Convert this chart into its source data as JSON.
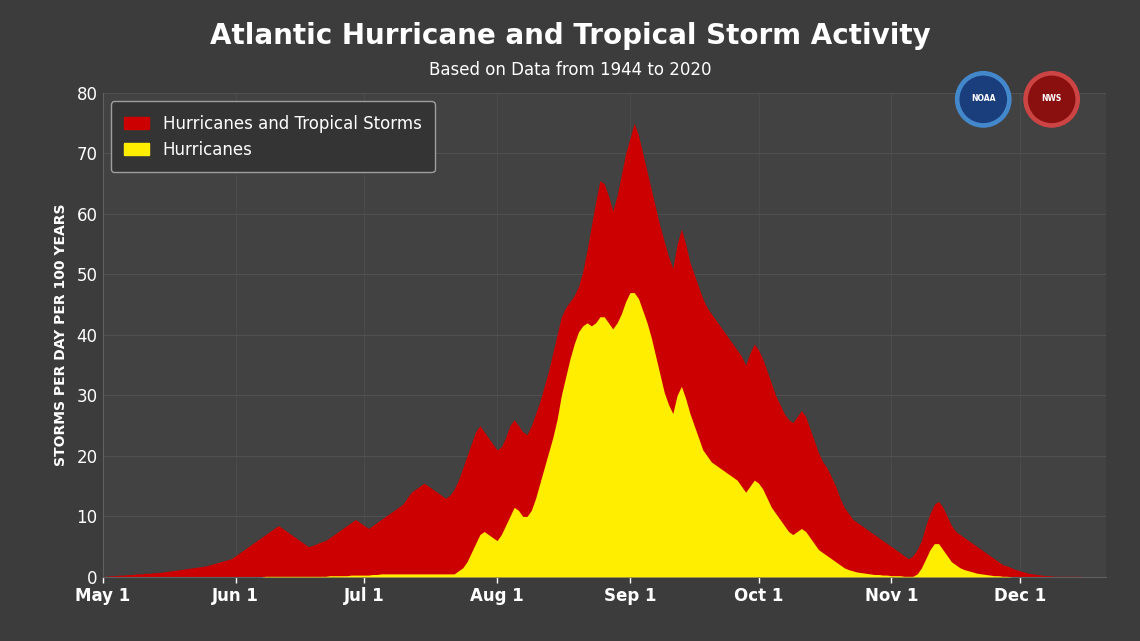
{
  "title": "Atlantic Hurricane and Tropical Storm Activity",
  "subtitle": "Based on Data from 1944 to 2020",
  "ylabel": "STORMS PER DAY PER 100 YEARS",
  "ylim": [
    0,
    80
  ],
  "yticks": [
    0,
    10,
    20,
    30,
    40,
    50,
    60,
    70,
    80
  ],
  "xtick_labels": [
    "May 1",
    "Jun 1",
    "Jul 1",
    "Aug 1",
    "Sep 1",
    "Oct 1",
    "Nov 1",
    "Dec 1"
  ],
  "background_color": "#3c3c3c",
  "plot_bg_color": "#424242",
  "grid_color": "#585858",
  "text_color": "#ffffff",
  "red_color": "#cc0000",
  "yellow_color": "#ffee00",
  "legend_bg": "#333333",
  "title_fontsize": 20,
  "subtitle_fontsize": 12,
  "label_fontsize": 10,
  "tick_fontsize": 12,
  "legend_fontsize": 12,
  "total_storms": [
    0.1,
    0.1,
    0.2,
    0.2,
    0.3,
    0.3,
    0.4,
    0.4,
    0.5,
    0.5,
    0.6,
    0.6,
    0.7,
    0.7,
    0.8,
    0.9,
    1.0,
    1.1,
    1.2,
    1.3,
    1.4,
    1.5,
    1.6,
    1.7,
    1.8,
    2.0,
    2.2,
    2.4,
    2.6,
    2.8,
    3.0,
    3.5,
    4.0,
    4.5,
    5.0,
    5.5,
    6.0,
    6.5,
    7.0,
    7.5,
    8.0,
    8.5,
    8.0,
    7.5,
    7.0,
    6.5,
    6.0,
    5.5,
    5.0,
    5.2,
    5.5,
    5.8,
    6.0,
    6.5,
    7.0,
    7.5,
    8.0,
    8.5,
    9.0,
    9.5,
    9.0,
    8.5,
    8.0,
    8.5,
    9.0,
    9.5,
    10.0,
    10.5,
    11.0,
    11.5,
    12.0,
    13.0,
    14.0,
    14.5,
    15.0,
    15.5,
    15.0,
    14.5,
    14.0,
    13.5,
    13.0,
    13.5,
    14.5,
    16.0,
    18.0,
    20.0,
    22.0,
    24.0,
    25.0,
    24.0,
    23.0,
    22.0,
    21.0,
    21.5,
    23.0,
    25.0,
    26.0,
    25.0,
    24.0,
    23.5,
    25.0,
    27.0,
    29.0,
    31.5,
    34.0,
    37.0,
    40.0,
    43.0,
    44.5,
    45.5,
    46.5,
    48.0,
    50.5,
    54.0,
    58.0,
    62.0,
    65.5,
    65.0,
    63.0,
    60.5,
    63.0,
    66.5,
    70.0,
    72.5,
    75.0,
    73.0,
    70.0,
    67.0,
    64.0,
    61.0,
    58.0,
    55.5,
    53.0,
    51.0,
    55.0,
    57.5,
    55.0,
    52.0,
    50.0,
    48.0,
    46.0,
    44.5,
    43.5,
    42.5,
    41.5,
    40.5,
    39.5,
    38.5,
    37.5,
    36.5,
    35.0,
    37.0,
    38.5,
    37.5,
    36.0,
    34.0,
    32.0,
    30.0,
    28.5,
    27.0,
    26.0,
    25.5,
    26.5,
    27.5,
    26.5,
    24.5,
    22.5,
    20.5,
    19.0,
    18.0,
    16.5,
    15.0,
    13.0,
    11.5,
    10.5,
    9.5,
    9.0,
    8.5,
    8.0,
    7.5,
    7.0,
    6.5,
    6.0,
    5.5,
    5.0,
    4.5,
    4.0,
    3.5,
    3.0,
    3.5,
    4.5,
    6.0,
    8.5,
    10.5,
    12.0,
    12.5,
    11.5,
    10.0,
    8.5,
    7.5,
    7.0,
    6.5,
    6.0,
    5.5,
    5.0,
    4.5,
    4.0,
    3.5,
    3.0,
    2.5,
    2.0,
    1.8,
    1.5,
    1.2,
    1.0,
    0.8,
    0.6,
    0.5,
    0.4,
    0.3,
    0.2,
    0.2,
    0.1,
    0.1,
    0.1,
    0.1,
    0.1,
    0.1,
    0.1,
    0.0,
    0.0,
    0.0,
    0.0,
    0.0,
    0.0
  ],
  "hurricanes": [
    0.0,
    0.0,
    0.0,
    0.0,
    0.0,
    0.0,
    0.0,
    0.0,
    0.0,
    0.0,
    0.0,
    0.0,
    0.0,
    0.0,
    0.0,
    0.0,
    0.0,
    0.0,
    0.0,
    0.0,
    0.0,
    0.0,
    0.0,
    0.0,
    0.0,
    0.0,
    0.0,
    0.0,
    0.0,
    0.0,
    0.0,
    0.0,
    0.0,
    0.0,
    0.0,
    0.0,
    0.0,
    0.0,
    0.1,
    0.1,
    0.1,
    0.1,
    0.1,
    0.1,
    0.1,
    0.1,
    0.1,
    0.1,
    0.1,
    0.1,
    0.1,
    0.1,
    0.1,
    0.2,
    0.2,
    0.2,
    0.2,
    0.2,
    0.3,
    0.3,
    0.3,
    0.3,
    0.3,
    0.4,
    0.4,
    0.5,
    0.5,
    0.5,
    0.5,
    0.5,
    0.5,
    0.5,
    0.5,
    0.5,
    0.5,
    0.5,
    0.5,
    0.5,
    0.5,
    0.5,
    0.5,
    0.5,
    0.5,
    1.0,
    1.5,
    2.5,
    4.0,
    5.5,
    7.0,
    7.5,
    7.0,
    6.5,
    6.0,
    7.0,
    8.5,
    10.0,
    11.5,
    11.0,
    10.0,
    10.0,
    11.0,
    13.0,
    15.5,
    18.0,
    20.5,
    23.0,
    26.0,
    30.0,
    33.0,
    36.0,
    38.5,
    40.5,
    41.5,
    42.0,
    41.5,
    42.0,
    43.0,
    43.0,
    42.0,
    41.0,
    42.0,
    43.5,
    45.5,
    47.0,
    47.0,
    46.0,
    44.0,
    42.0,
    39.5,
    36.5,
    33.5,
    30.5,
    28.5,
    27.0,
    30.0,
    31.5,
    29.5,
    27.0,
    25.0,
    23.0,
    21.0,
    20.0,
    19.0,
    18.5,
    18.0,
    17.5,
    17.0,
    16.5,
    16.0,
    15.0,
    14.0,
    15.0,
    16.0,
    15.5,
    14.5,
    13.0,
    11.5,
    10.5,
    9.5,
    8.5,
    7.5,
    7.0,
    7.5,
    8.0,
    7.5,
    6.5,
    5.5,
    4.5,
    4.0,
    3.5,
    3.0,
    2.5,
    2.0,
    1.5,
    1.2,
    1.0,
    0.8,
    0.7,
    0.6,
    0.5,
    0.4,
    0.4,
    0.3,
    0.3,
    0.2,
    0.2,
    0.2,
    0.1,
    0.1,
    0.1,
    0.5,
    1.5,
    3.0,
    4.5,
    5.5,
    5.5,
    4.5,
    3.5,
    2.5,
    2.0,
    1.5,
    1.2,
    1.0,
    0.8,
    0.6,
    0.5,
    0.4,
    0.3,
    0.2,
    0.2,
    0.1,
    0.1,
    0.0,
    0.0,
    0.0,
    0.0,
    0.0,
    0.0,
    0.0,
    0.0,
    0.0,
    0.0,
    0.0,
    0.0,
    0.0,
    0.0,
    0.0,
    0.0,
    0.0,
    0.0,
    0.0,
    0.0,
    0.0,
    0.0,
    0.0
  ]
}
